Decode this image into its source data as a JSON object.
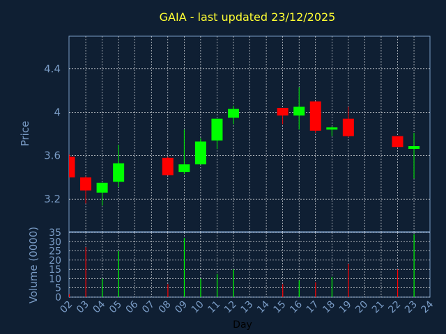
{
  "chart_data": [
    {
      "type": "candlestick",
      "title": "GAIA - last updated 23/12/2025",
      "ylabel": "Price",
      "ylim": [
        2.9,
        4.7
      ],
      "yticks": [
        "3.2",
        "3.6",
        "4",
        "4.4"
      ],
      "grid": true,
      "colors": {
        "up": "#00ff00",
        "down": "#ff0000",
        "background": "#0f1f33",
        "title": "#ffff33",
        "axis_text": "#7a9cc6",
        "grid": "#ffffff"
      },
      "days": [
        "02",
        "03",
        "04",
        "05",
        "08",
        "09",
        "10",
        "11",
        "12",
        "15",
        "16",
        "17",
        "18",
        "19",
        "22",
        "23"
      ],
      "open": [
        3.59,
        3.4,
        3.26,
        3.36,
        3.58,
        3.45,
        3.52,
        3.74,
        3.95,
        4.04,
        3.97,
        4.1,
        3.84,
        3.94,
        3.78,
        3.67
      ],
      "high": [
        3.61,
        3.41,
        3.35,
        3.7,
        3.59,
        3.84,
        3.76,
        3.93,
        4.06,
        4.04,
        4.23,
        4.1,
        3.87,
        4.05,
        3.78,
        3.81
      ],
      "low": [
        3.4,
        3.16,
        3.14,
        3.31,
        3.42,
        3.43,
        3.52,
        3.66,
        3.89,
        3.89,
        3.84,
        3.81,
        3.78,
        3.77,
        3.68,
        3.39
      ],
      "close": [
        3.4,
        3.28,
        3.35,
        3.53,
        3.42,
        3.52,
        3.73,
        3.94,
        4.03,
        3.97,
        4.05,
        3.83,
        3.86,
        3.78,
        3.68,
        3.68
      ]
    },
    {
      "type": "bar",
      "ylabel": "Volume (0000)",
      "xlabel": "Day",
      "ylim": [
        0,
        35
      ],
      "yticks": [
        "0",
        "5",
        "10",
        "15",
        "20",
        "25",
        "30",
        "35"
      ],
      "x_axis_labels": [
        "02",
        "03",
        "04",
        "05",
        "06",
        "07",
        "08",
        "09",
        "10",
        "11",
        "12",
        "13",
        "14",
        "15",
        "16",
        "17",
        "18",
        "19",
        "20",
        "21",
        "22",
        "23",
        "24"
      ],
      "days": [
        "02",
        "03",
        "04",
        "05",
        "08",
        "09",
        "10",
        "11",
        "12",
        "15",
        "16",
        "17",
        "18",
        "19",
        "22",
        "23"
      ],
      "values": [
        1.5,
        27,
        10,
        25,
        7,
        32,
        10,
        12.5,
        15,
        7,
        9,
        8,
        11,
        18,
        15,
        34
      ]
    }
  ]
}
